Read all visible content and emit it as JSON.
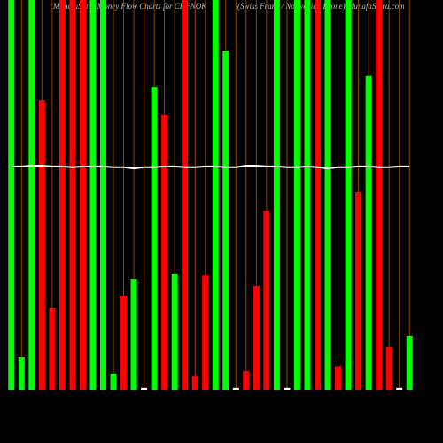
{
  "chart_data": {
    "type": "bar",
    "title": "MunafaSutra Money Flow Charts for CHFNOK",
    "subtitle": "(Swiss Franc / Norwegian Krone) MunafaSutra.com",
    "categories": [
      null,
      null,
      null,
      null,
      null,
      null,
      null,
      null,
      null,
      null,
      null,
      null,
      null,
      null,
      null,
      null,
      null,
      null,
      null,
      null,
      null,
      null,
      null,
      null,
      null,
      null,
      null,
      null,
      null,
      null,
      null,
      null,
      null,
      null,
      null,
      null,
      null,
      null,
      null,
      null
    ],
    "values": [
      100,
      8.4,
      100,
      74.3,
      20.9,
      100,
      100,
      100,
      100,
      100,
      4.1,
      24.1,
      28.4,
      0.5,
      77.7,
      70.5,
      29.8,
      100,
      3.6,
      29.5,
      100,
      87,
      0.5,
      4.8,
      26.6,
      45.9,
      100,
      0.5,
      100,
      100,
      100,
      100,
      6.1,
      100,
      50.7,
      80.5,
      100,
      10.9,
      0.5,
      13.9
    ],
    "colors": [
      "#00ff00",
      "#00ff00",
      "#00ff00",
      "#ff0000",
      "#ff0000",
      "#ff0000",
      "#ff0000",
      "#ff0000",
      "#00ff00",
      "#00ff00",
      "#00ff00",
      "#ff0000",
      "#00ff00",
      "#ffffff",
      "#00ff00",
      "#ff0000",
      "#00ff00",
      "#ff0000",
      "#ff0000",
      "#ff0000",
      "#00ff00",
      "#00ff00",
      "#ffffff",
      "#ff0000",
      "#ff0000",
      "#ff0000",
      "#00ff00",
      "#ffffff",
      "#00ff00",
      "#00ff00",
      "#ff0000",
      "#00ff00",
      "#ff0000",
      "#00ff00",
      "#ff0000",
      "#00ff00",
      "#ff0000",
      "#ff0000",
      "#ffffff",
      "#00ff00"
    ],
    "line": {
      "color": "#ffffff",
      "values": [
        57.3,
        57.3,
        57.5,
        57.5,
        57.3,
        57.3,
        57.1,
        57.3,
        57.3,
        57.3,
        57.1,
        57.1,
        56.8,
        57.1,
        57.1,
        57.3,
        57.3,
        57.1,
        57.1,
        57.3,
        57.3,
        57.1,
        57.1,
        57.5,
        57.5,
        57.3,
        57.3,
        57.1,
        57.1,
        57.3,
        57.1,
        56.8,
        57.1,
        57.1,
        57.3,
        57.3,
        57.1,
        57.1,
        57.3,
        57.3
      ]
    },
    "gridline_color": "#8b4500",
    "ylim": [
      0,
      100
    ]
  }
}
